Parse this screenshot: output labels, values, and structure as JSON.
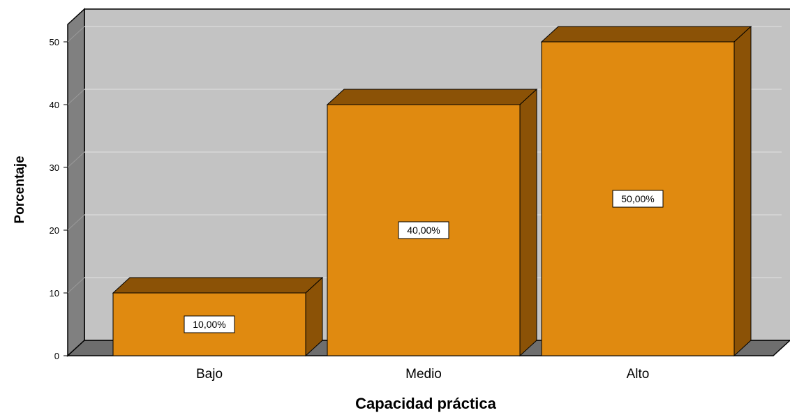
{
  "chart_data": {
    "type": "bar",
    "categories": [
      "Bajo",
      "Medio",
      "Alto"
    ],
    "values": [
      10,
      40,
      50
    ],
    "data_labels": [
      "10,00%",
      "40,00%",
      "50,00%"
    ],
    "xlabel": "Capacidad práctica",
    "ylabel": "Porcentaje",
    "ylim": [
      0,
      50
    ],
    "yticks": [
      0,
      10,
      20,
      30,
      40,
      50
    ],
    "grid": true,
    "style_3d": true,
    "colors": {
      "bar_front": "#E08A10",
      "bar_top": "#8B5206",
      "bar_side": "#8B5206",
      "wall": "#C3C3C3",
      "wall_side": "#808080",
      "floor": "#6E6E6E",
      "gridline": "#D8D8D8"
    }
  }
}
